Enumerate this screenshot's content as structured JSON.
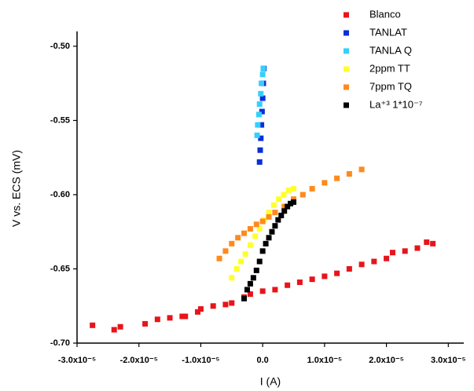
{
  "chart_data": {
    "type": "scatter",
    "x_label": "I (A)",
    "y_label": "V vs. ECS (mV)",
    "xlim": [
      -3e-05,
      3.25e-05
    ],
    "ylim": [
      -0.7,
      -0.49
    ],
    "xticks": [
      {
        "value": -3e-05,
        "label": "-3.0x10⁻⁵"
      },
      {
        "value": -2e-05,
        "label": "-2.0x10⁻⁵"
      },
      {
        "value": -1e-05,
        "label": "-1.0x10⁻⁵"
      },
      {
        "value": 0,
        "label": "0.0"
      },
      {
        "value": 1e-05,
        "label": "1.0x10⁻⁵"
      },
      {
        "value": 2e-05,
        "label": "2.0x10⁻⁵"
      },
      {
        "value": 3e-05,
        "label": "3.0x10⁻⁵"
      }
    ],
    "yticks": [
      {
        "value": -0.7,
        "label": "-0.70"
      },
      {
        "value": -0.65,
        "label": "-0.65"
      },
      {
        "value": -0.6,
        "label": "-0.60"
      },
      {
        "value": -0.55,
        "label": "-0.55"
      },
      {
        "value": -0.5,
        "label": "-0.50"
      }
    ],
    "series": [
      {
        "name": "Blanco",
        "color": "#e8141b",
        "x": [
          -2.75e-05,
          -2.4e-05,
          -2.3e-05,
          -1.9e-05,
          -1.7e-05,
          -1.5e-05,
          -1.3e-05,
          -1.25e-05,
          -1.05e-05,
          -1e-05,
          -8e-06,
          -6e-06,
          -5e-06,
          -3e-06,
          -2e-06,
          0,
          2e-06,
          4e-06,
          6e-06,
          8e-06,
          1e-05,
          1.2e-05,
          1.4e-05,
          1.6e-05,
          1.8e-05,
          2e-05,
          2.1e-05,
          2.3e-05,
          2.5e-05,
          2.65e-05,
          2.75e-05
        ],
        "values": [
          -0.688,
          -0.691,
          -0.689,
          -0.687,
          -0.684,
          -0.683,
          -0.682,
          -0.682,
          -0.679,
          -0.677,
          -0.675,
          -0.674,
          -0.673,
          -0.669,
          -0.667,
          -0.665,
          -0.664,
          -0.661,
          -0.659,
          -0.657,
          -0.655,
          -0.653,
          -0.65,
          -0.647,
          -0.645,
          -0.643,
          -0.639,
          -0.638,
          -0.636,
          -0.632,
          -0.633
        ]
      },
      {
        "name": "TANLAT",
        "color": "#0a2fd6",
        "x": [
          -5e-07,
          -4e-07,
          -3e-07,
          -2e-07,
          -1e-07,
          0,
          1e-07,
          2e-07
        ],
        "values": [
          -0.578,
          -0.57,
          -0.562,
          -0.553,
          -0.544,
          -0.535,
          -0.525,
          -0.515
        ]
      },
      {
        "name": "TANLA Q",
        "color": "#33d0ff",
        "x": [
          -9e-07,
          -8e-07,
          -6e-07,
          -5e-07,
          -3e-07,
          -2e-07,
          0,
          1e-07
        ],
        "values": [
          -0.56,
          -0.553,
          -0.546,
          -0.539,
          -0.532,
          -0.525,
          -0.519,
          -0.515
        ]
      },
      {
        "name": "2ppm TT",
        "color": "#ffff2a",
        "x": [
          -5e-06,
          -4.2e-06,
          -3.5e-06,
          -2.8e-06,
          -2e-06,
          -1.2e-06,
          -5e-07,
          2e-07,
          1e-06,
          1.8e-06,
          2.6e-06,
          3.4e-06,
          4.2e-06,
          5e-06
        ],
        "values": [
          -0.656,
          -0.65,
          -0.645,
          -0.64,
          -0.634,
          -0.628,
          -0.623,
          -0.617,
          -0.612,
          -0.607,
          -0.603,
          -0.6,
          -0.597,
          -0.596
        ]
      },
      {
        "name": "7ppm TQ",
        "color": "#ff8a1c",
        "x": [
          -7e-06,
          -6e-06,
          -5e-06,
          -4e-06,
          -3e-06,
          -2e-06,
          -1e-06,
          0,
          1e-06,
          2e-06,
          3.5e-06,
          5e-06,
          6.5e-06,
          8e-06,
          1e-05,
          1.2e-05,
          1.4e-05,
          1.6e-05
        ],
        "values": [
          -0.643,
          -0.638,
          -0.633,
          -0.629,
          -0.626,
          -0.623,
          -0.62,
          -0.618,
          -0.615,
          -0.612,
          -0.608,
          -0.603,
          -0.6,
          -0.596,
          -0.592,
          -0.589,
          -0.586,
          -0.583
        ]
      },
      {
        "name": "La⁺³ 1*10⁻⁷",
        "color": "#000000",
        "x": [
          -3e-06,
          -2.5e-06,
          -2e-06,
          -1.5e-06,
          -1e-06,
          -5e-07,
          0,
          5e-07,
          1e-06,
          1.5e-06,
          2e-06,
          2.5e-06,
          3e-06,
          3.5e-06,
          4e-06,
          4.5e-06,
          5e-06
        ],
        "values": [
          -0.67,
          -0.664,
          -0.66,
          -0.656,
          -0.651,
          -0.645,
          -0.638,
          -0.633,
          -0.629,
          -0.625,
          -0.621,
          -0.617,
          -0.614,
          -0.611,
          -0.608,
          -0.606,
          -0.605
        ]
      }
    ]
  }
}
